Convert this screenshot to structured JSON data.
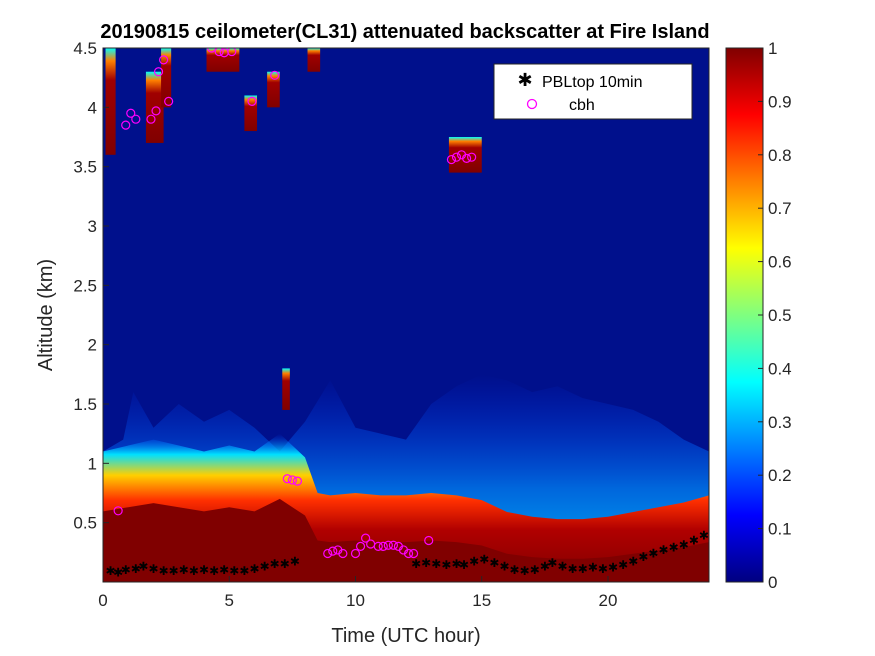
{
  "chart_data": {
    "type": "heatmap",
    "title": "20190815 ceilometer(CL31) attenuated backscatter at Fire Island",
    "xlabel": "Time (UTC hour)",
    "ylabel": "Altitude (km)",
    "xlim": [
      0,
      24
    ],
    "ylim": [
      0,
      4.5
    ],
    "xticks": [
      0,
      5,
      10,
      15,
      20
    ],
    "yticks": [
      0.5,
      1,
      1.5,
      2,
      2.5,
      3,
      3.5,
      4,
      4.5
    ],
    "colorbar": {
      "range": [
        0,
        1
      ],
      "ticks": [
        0,
        0.1,
        0.2,
        0.3,
        0.4,
        0.5,
        0.6,
        0.7,
        0.8,
        0.9,
        1
      ],
      "colormap": "jet",
      "colors": [
        "#000080",
        "#0000ff",
        "#00ffff",
        "#ffff00",
        "#ff0000",
        "#800000"
      ]
    },
    "background_color": "#00108c",
    "legend_position": "top-right",
    "series": [
      {
        "name": "PBLtop 10min",
        "marker": "asterisk",
        "color": "#000000",
        "points": [
          [
            0.3,
            0.1
          ],
          [
            0.6,
            0.09
          ],
          [
            0.9,
            0.11
          ],
          [
            1.3,
            0.12
          ],
          [
            1.6,
            0.14
          ],
          [
            2.0,
            0.12
          ],
          [
            2.4,
            0.1
          ],
          [
            2.8,
            0.1
          ],
          [
            3.2,
            0.11
          ],
          [
            3.6,
            0.1
          ],
          [
            4.0,
            0.11
          ],
          [
            4.4,
            0.1
          ],
          [
            4.8,
            0.11
          ],
          [
            5.2,
            0.1
          ],
          [
            5.6,
            0.1
          ],
          [
            6.0,
            0.12
          ],
          [
            6.4,
            0.14
          ],
          [
            6.8,
            0.16
          ],
          [
            7.2,
            0.16
          ],
          [
            7.6,
            0.18
          ],
          [
            12.4,
            0.16
          ],
          [
            12.8,
            0.17
          ],
          [
            13.2,
            0.16
          ],
          [
            13.6,
            0.15
          ],
          [
            14.0,
            0.16
          ],
          [
            14.3,
            0.15
          ],
          [
            14.7,
            0.18
          ],
          [
            15.1,
            0.2
          ],
          [
            15.5,
            0.17
          ],
          [
            15.9,
            0.14
          ],
          [
            16.3,
            0.11
          ],
          [
            16.7,
            0.1
          ],
          [
            17.1,
            0.11
          ],
          [
            17.5,
            0.14
          ],
          [
            17.8,
            0.17
          ],
          [
            18.2,
            0.14
          ],
          [
            18.6,
            0.12
          ],
          [
            19.0,
            0.12
          ],
          [
            19.4,
            0.13
          ],
          [
            19.8,
            0.12
          ],
          [
            20.2,
            0.13
          ],
          [
            20.6,
            0.15
          ],
          [
            21.0,
            0.18
          ],
          [
            21.4,
            0.22
          ],
          [
            21.8,
            0.25
          ],
          [
            22.2,
            0.28
          ],
          [
            22.6,
            0.3
          ],
          [
            23.0,
            0.32
          ],
          [
            23.4,
            0.36
          ],
          [
            23.8,
            0.4
          ]
        ]
      },
      {
        "name": "cbh",
        "marker": "circle",
        "color": "#ff00ff",
        "points": [
          [
            0.6,
            0.6
          ],
          [
            0.9,
            3.85
          ],
          [
            1.1,
            3.95
          ],
          [
            1.3,
            3.9
          ],
          [
            1.9,
            3.9
          ],
          [
            2.1,
            3.97
          ],
          [
            2.2,
            4.3
          ],
          [
            2.4,
            4.4
          ],
          [
            2.6,
            4.05
          ],
          [
            4.3,
            4.5
          ],
          [
            4.6,
            4.47
          ],
          [
            4.8,
            4.46
          ],
          [
            5.1,
            4.47
          ],
          [
            5.9,
            4.05
          ],
          [
            6.8,
            4.27
          ],
          [
            7.3,
            0.87
          ],
          [
            7.5,
            0.86
          ],
          [
            7.7,
            0.85
          ],
          [
            8.9,
            0.24
          ],
          [
            9.1,
            0.26
          ],
          [
            9.3,
            0.27
          ],
          [
            9.5,
            0.24
          ],
          [
            10.0,
            0.24
          ],
          [
            10.2,
            0.3
          ],
          [
            10.4,
            0.37
          ],
          [
            10.6,
            0.32
          ],
          [
            10.9,
            0.3
          ],
          [
            11.1,
            0.3
          ],
          [
            11.3,
            0.31
          ],
          [
            11.5,
            0.31
          ],
          [
            11.7,
            0.3
          ],
          [
            11.9,
            0.27
          ],
          [
            12.1,
            0.24
          ],
          [
            12.3,
            0.24
          ],
          [
            12.9,
            0.35
          ],
          [
            13.8,
            3.56
          ],
          [
            14.0,
            3.58
          ],
          [
            14.2,
            3.6
          ],
          [
            14.4,
            3.57
          ],
          [
            14.6,
            3.58
          ]
        ]
      }
    ]
  }
}
